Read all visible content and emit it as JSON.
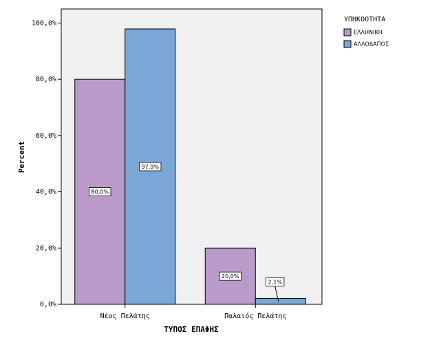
{
  "chart_data": {
    "type": "bar",
    "categories": [
      "Νέος Πελάτης",
      "Παλαιός Πελάτης"
    ],
    "x_label": "ΤΥΠΟΣ ΕΠΑΦΗΣ",
    "y_label": "Percent",
    "legend_title": "ΥΠΗΚΟΟΤΗΤΑ",
    "legend": "right",
    "series": [
      {
        "name": "ΕΛΛΗΝΙΚΗ",
        "color": "#b99ac9",
        "values": [
          80.0,
          20.0
        ],
        "value_labels": [
          "80,0%",
          "20,0%"
        ]
      },
      {
        "name": "ΑΛΛΟΔΑΠΟΣ",
        "color": "#7ba7d6",
        "values": [
          97.9,
          2.1
        ],
        "value_labels": [
          "97,9%",
          "2,1%"
        ]
      }
    ],
    "ylim": [
      0,
      105
    ],
    "yticks": [
      {
        "value": 0,
        "label": "0,0%"
      },
      {
        "value": 20,
        "label": "20,0%"
      },
      {
        "value": 40,
        "label": "40,0%"
      },
      {
        "value": 60,
        "label": "60,0%"
      },
      {
        "value": 80,
        "label": "80,0%"
      },
      {
        "value": 100,
        "label": "100,0%"
      }
    ],
    "plot_background": "#f0f0f0"
  }
}
